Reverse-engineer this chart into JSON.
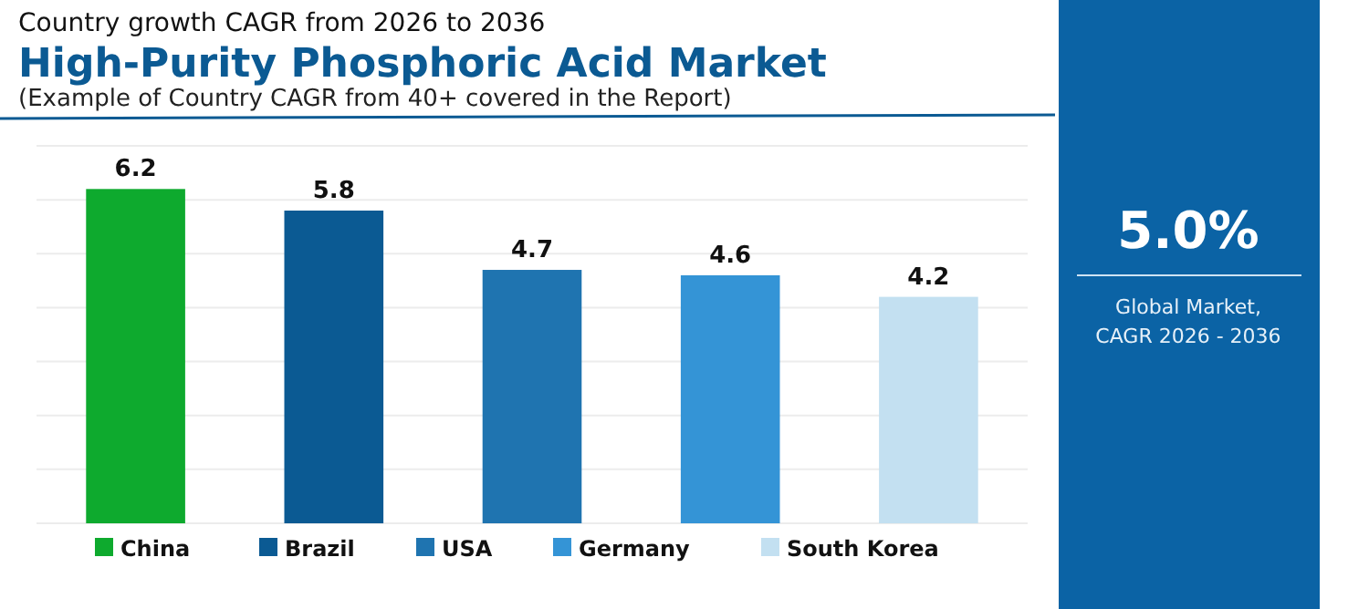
{
  "chart_data": {
    "type": "bar",
    "subtitle": "Country growth CAGR from 2026 to 2036",
    "title": "High-Purity Phosphoric Acid Market",
    "annotations": [
      "(Example of Country CAGR from 40+ covered in the Report)",
      "5.0%",
      "Global Market,",
      "CAGR 2026 - 2036"
    ],
    "categories": [
      null,
      null,
      null,
      null,
      null
    ],
    "series": [
      {
        "name": "China",
        "color": "#0eaa2e",
        "values": [
          6.2,
          null,
          null,
          null,
          null
        ]
      },
      {
        "name": "Brazil",
        "color": "#0b5a93",
        "values": [
          null,
          5.8,
          null,
          null,
          null
        ]
      },
      {
        "name": "USA",
        "color": "#1f74b0",
        "values": [
          null,
          null,
          4.7,
          null,
          null
        ]
      },
      {
        "name": "Germany",
        "color": "#3494d6",
        "values": [
          null,
          null,
          null,
          4.6,
          null
        ]
      },
      {
        "name": "South Korea",
        "color": "#c3e0f1",
        "values": [
          null,
          null,
          null,
          null,
          4.2
        ]
      }
    ],
    "ylim": [
      0,
      7
    ],
    "yticks": [
      {
        "value": 0,
        "label": null
      },
      {
        "value": 1,
        "label": null
      },
      {
        "value": 2,
        "label": null
      },
      {
        "value": 3,
        "label": null
      },
      {
        "value": 4,
        "label": null
      },
      {
        "value": 5,
        "label": null
      },
      {
        "value": 6,
        "label": null
      },
      {
        "value": 7,
        "label": null
      }
    ],
    "grid": "y",
    "data_labels": true,
    "legend": "bottom",
    "stacked": true
  }
}
